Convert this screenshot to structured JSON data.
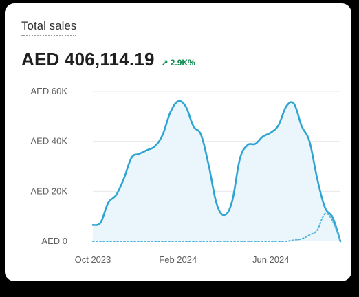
{
  "widget": {
    "title": "Total sales",
    "total_value": "AED 406,114.19",
    "change": {
      "arrow": "↗",
      "text": "2.9K%",
      "color": "#0c8a4c"
    }
  },
  "colors": {
    "primary_line": "#2fa4d2",
    "primary_fill": "#eaf6fb",
    "comparison_line": "#54b6dc",
    "grid": "#e8e8e8",
    "text": "#303030"
  },
  "icons": {
    "change_icon": "arrow-up-right-icon"
  },
  "chart_data": {
    "type": "area",
    "title": "",
    "xlabel": "",
    "ylabel": "",
    "x_tick_labels": [
      "Oct 2023",
      "Feb 2024",
      "Jun 2024"
    ],
    "y_tick_labels": [
      "AED 0",
      "AED 20K",
      "AED 40K",
      "AED 60K"
    ],
    "y_ticks": [
      0,
      20000,
      40000,
      60000
    ],
    "ylim": [
      0,
      60000
    ],
    "grid": true,
    "legend": "none",
    "series": [
      {
        "style": "solid",
        "values": [
          6500,
          7500,
          15500,
          18500,
          25000,
          33500,
          35000,
          36500,
          38000,
          42500,
          51500,
          56000,
          54000,
          46000,
          42500,
          30000,
          15000,
          10500,
          16000,
          33000,
          38500,
          39000,
          42000,
          43500,
          46500,
          54000,
          55000,
          46000,
          40000,
          25000,
          13500,
          9500,
          0
        ]
      },
      {
        "style": "dotted",
        "values": [
          0,
          0,
          0,
          0,
          0,
          0,
          0,
          0,
          0,
          0,
          0,
          0,
          0,
          0,
          0,
          0,
          0,
          0,
          0,
          0,
          0,
          0,
          0,
          0,
          0,
          0,
          500,
          1000,
          2500,
          4500,
          11000,
          8000,
          0
        ]
      }
    ]
  }
}
